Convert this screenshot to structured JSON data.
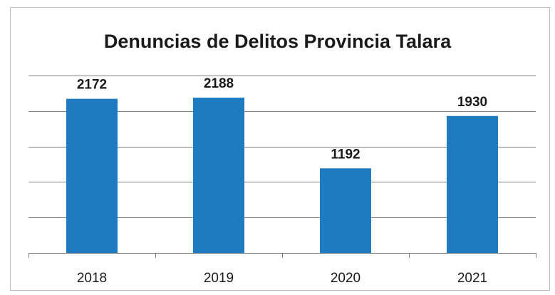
{
  "chart_data": {
    "type": "bar",
    "title": "Denuncias de Delitos Provincia Talara",
    "categories": [
      "2018",
      "2019",
      "2020",
      "2021"
    ],
    "values": [
      2172,
      2188,
      1192,
      1930
    ],
    "data_labels": [
      "2172",
      "2188",
      "1192",
      "1930"
    ],
    "xlabel": "",
    "ylabel": "",
    "ylim": [
      0,
      2500
    ],
    "grid": true,
    "legend": "none",
    "colors": {
      "bar": "#1f7bc1",
      "grid": "#7f7f7f",
      "axis": "#7f7f7f",
      "text": "#1a1a1a"
    }
  }
}
